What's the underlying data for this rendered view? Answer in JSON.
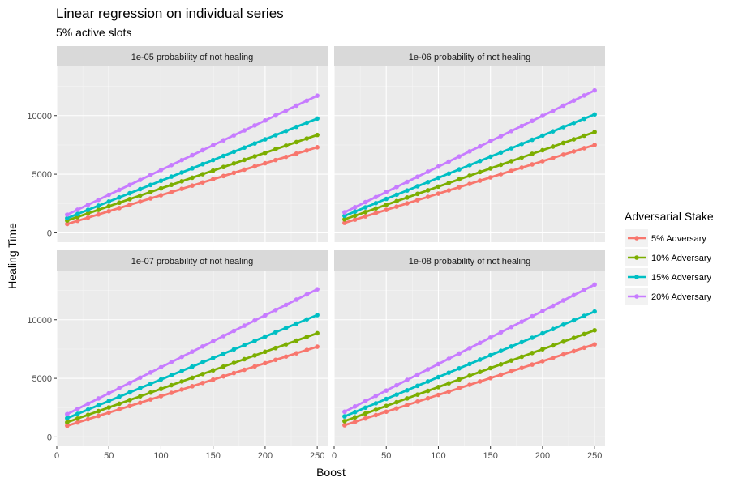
{
  "title": "Linear regression on individual series",
  "subtitle": "5% active slots",
  "xlabel": "Boost",
  "ylabel": "Healing Time",
  "legend": {
    "title": "Adversarial Stake",
    "position": "right"
  },
  "colors": {
    "5% Adversary": "#F8766D",
    "10% Adversary": "#7CAE00",
    "15% Adversary": "#00BFC4",
    "20% Adversary": "#C77CFF"
  },
  "chart_data": {
    "type": "scatter",
    "facets": [
      "1e-05 probability of not healing",
      "1e-06 probability of not healing",
      "1e-07 probability of not healing",
      "1e-08 probability of not healing"
    ],
    "series_names": [
      "5% Adversary",
      "10% Adversary",
      "15% Adversary",
      "20% Adversary"
    ],
    "x": {
      "from": 10,
      "to": 250,
      "step": 10
    },
    "xlim": [
      0,
      260
    ],
    "ylim": [
      -800,
      14200
    ],
    "x_ticks": [
      0,
      50,
      100,
      150,
      200,
      250
    ],
    "y_ticks": [
      0,
      5000,
      10000
    ],
    "grid": true,
    "regression_lines": true,
    "panels": [
      {
        "facet": "1e-05 probability of not healing",
        "series": [
          {
            "name": "5% Adversary",
            "y_start": 750,
            "y_end": 7300
          },
          {
            "name": "10% Adversary",
            "y_start": 1050,
            "y_end": 8350
          },
          {
            "name": "15% Adversary",
            "y_start": 1250,
            "y_end": 9750
          },
          {
            "name": "20% Adversary",
            "y_start": 1550,
            "y_end": 11700
          }
        ]
      },
      {
        "facet": "1e-06 probability of not healing",
        "series": [
          {
            "name": "5% Adversary",
            "y_start": 850,
            "y_end": 7500
          },
          {
            "name": "10% Adversary",
            "y_start": 1150,
            "y_end": 8600
          },
          {
            "name": "15% Adversary",
            "y_start": 1450,
            "y_end": 10100
          },
          {
            "name": "20% Adversary",
            "y_start": 1750,
            "y_end": 12150
          }
        ]
      },
      {
        "facet": "1e-07 probability of not healing",
        "series": [
          {
            "name": "5% Adversary",
            "y_start": 950,
            "y_end": 7700
          },
          {
            "name": "10% Adversary",
            "y_start": 1250,
            "y_end": 8850
          },
          {
            "name": "15% Adversary",
            "y_start": 1600,
            "y_end": 10400
          },
          {
            "name": "20% Adversary",
            "y_start": 1950,
            "y_end": 12600
          }
        ]
      },
      {
        "facet": "1e-08 probability of not healing",
        "series": [
          {
            "name": "5% Adversary",
            "y_start": 1000,
            "y_end": 7900
          },
          {
            "name": "10% Adversary",
            "y_start": 1350,
            "y_end": 9100
          },
          {
            "name": "15% Adversary",
            "y_start": 1750,
            "y_end": 10700
          },
          {
            "name": "20% Adversary",
            "y_start": 2150,
            "y_end": 13000
          }
        ]
      }
    ]
  }
}
